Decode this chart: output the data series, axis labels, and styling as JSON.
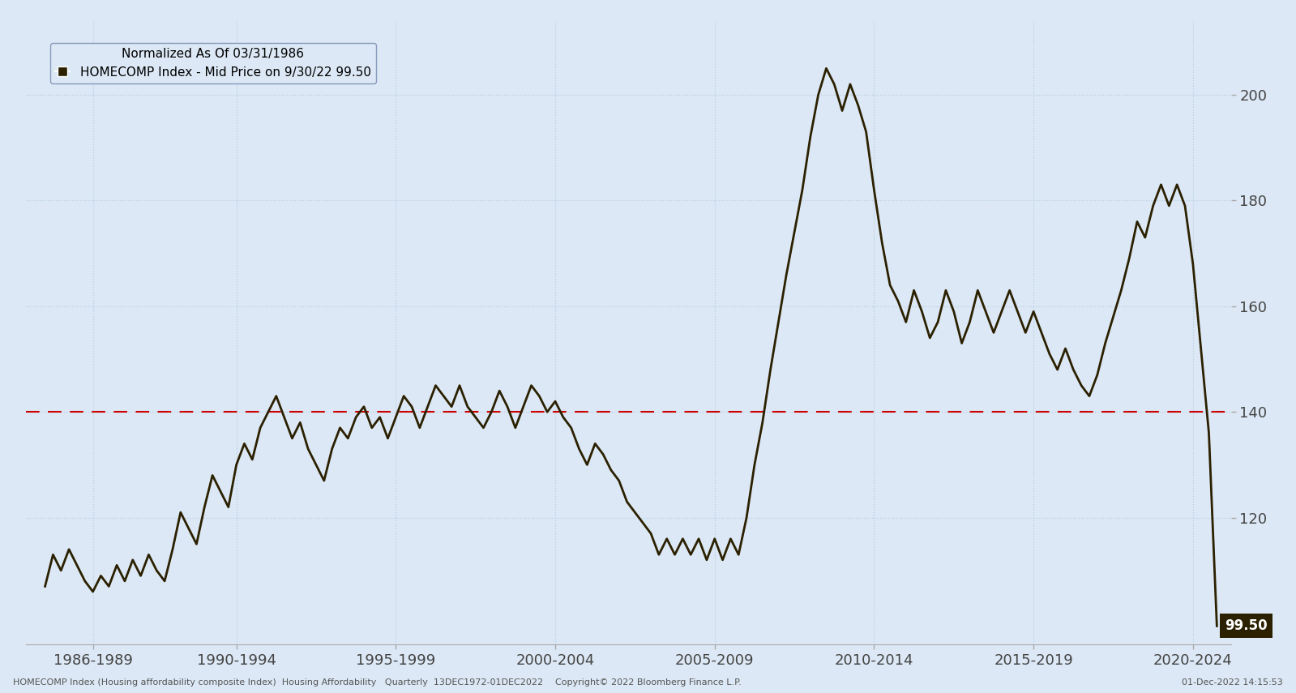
{
  "background_color": "#dce8f5",
  "line_color": "#2b2000",
  "line_width": 2.0,
  "dashed_line_value": 140,
  "dashed_line_color": "#cc0000",
  "last_value": 99.5,
  "last_value_bg": "#2b2000",
  "last_value_color": "#ffffff",
  "yticks": [
    120,
    140,
    160,
    180,
    200
  ],
  "grid_color": "#b8cfe0",
  "legend_title": "Normalized As Of 03/31/1986",
  "legend_label": "HOMECOMP Index - Mid Price on 9/30/22 99.50",
  "footer_left": "HOMECOMP Index (Housing affordability composite Index)  Housing Affordability   Quarterly  13DEC1972-01DEC2022",
  "footer_center": "Copyright© 2022 Bloomberg Finance L.P.",
  "footer_right": "01-Dec-2022 14:15:53",
  "xtick_labels": [
    "1986-1989",
    "1990-1994",
    "1995-1999",
    "2000-2004",
    "2005-2009",
    "2010-2014",
    "2015-2019",
    "2020-2024"
  ],
  "xtick_positions": [
    1987.5,
    1992.0,
    1997.0,
    2002.0,
    2007.0,
    2012.0,
    2017.0,
    2022.0
  ],
  "xlim": [
    1985.4,
    2023.2
  ],
  "ylim": [
    96,
    214
  ],
  "data": [
    [
      1986.0,
      107
    ],
    [
      1986.25,
      113
    ],
    [
      1986.5,
      110
    ],
    [
      1986.75,
      114
    ],
    [
      1987.0,
      111
    ],
    [
      1987.25,
      108
    ],
    [
      1987.5,
      106
    ],
    [
      1987.75,
      109
    ],
    [
      1988.0,
      107
    ],
    [
      1988.25,
      111
    ],
    [
      1988.5,
      108
    ],
    [
      1988.75,
      112
    ],
    [
      1989.0,
      109
    ],
    [
      1989.25,
      113
    ],
    [
      1989.5,
      110
    ],
    [
      1989.75,
      108
    ],
    [
      1990.0,
      114
    ],
    [
      1990.25,
      121
    ],
    [
      1990.5,
      118
    ],
    [
      1990.75,
      115
    ],
    [
      1991.0,
      122
    ],
    [
      1991.25,
      128
    ],
    [
      1991.5,
      125
    ],
    [
      1991.75,
      122
    ],
    [
      1992.0,
      130
    ],
    [
      1992.25,
      134
    ],
    [
      1992.5,
      131
    ],
    [
      1992.75,
      137
    ],
    [
      1993.0,
      140
    ],
    [
      1993.25,
      143
    ],
    [
      1993.5,
      139
    ],
    [
      1993.75,
      135
    ],
    [
      1994.0,
      138
    ],
    [
      1994.25,
      133
    ],
    [
      1994.5,
      130
    ],
    [
      1994.75,
      127
    ],
    [
      1995.0,
      133
    ],
    [
      1995.25,
      137
    ],
    [
      1995.5,
      135
    ],
    [
      1995.75,
      139
    ],
    [
      1996.0,
      141
    ],
    [
      1996.25,
      137
    ],
    [
      1996.5,
      139
    ],
    [
      1996.75,
      135
    ],
    [
      1997.0,
      139
    ],
    [
      1997.25,
      143
    ],
    [
      1997.5,
      141
    ],
    [
      1997.75,
      137
    ],
    [
      1998.0,
      141
    ],
    [
      1998.25,
      145
    ],
    [
      1998.5,
      143
    ],
    [
      1998.75,
      141
    ],
    [
      1999.0,
      145
    ],
    [
      1999.25,
      141
    ],
    [
      1999.5,
      139
    ],
    [
      1999.75,
      137
    ],
    [
      2000.0,
      140
    ],
    [
      2000.25,
      144
    ],
    [
      2000.5,
      141
    ],
    [
      2000.75,
      137
    ],
    [
      2001.0,
      141
    ],
    [
      2001.25,
      145
    ],
    [
      2001.5,
      143
    ],
    [
      2001.75,
      140
    ],
    [
      2002.0,
      142
    ],
    [
      2002.25,
      139
    ],
    [
      2002.5,
      137
    ],
    [
      2002.75,
      133
    ],
    [
      2003.0,
      130
    ],
    [
      2003.25,
      134
    ],
    [
      2003.5,
      132
    ],
    [
      2003.75,
      129
    ],
    [
      2004.0,
      127
    ],
    [
      2004.25,
      123
    ],
    [
      2004.5,
      121
    ],
    [
      2004.75,
      119
    ],
    [
      2005.0,
      117
    ],
    [
      2005.25,
      113
    ],
    [
      2005.5,
      116
    ],
    [
      2005.75,
      113
    ],
    [
      2006.0,
      116
    ],
    [
      2006.25,
      113
    ],
    [
      2006.5,
      116
    ],
    [
      2006.75,
      112
    ],
    [
      2007.0,
      116
    ],
    [
      2007.25,
      112
    ],
    [
      2007.5,
      116
    ],
    [
      2007.75,
      113
    ],
    [
      2008.0,
      120
    ],
    [
      2008.25,
      130
    ],
    [
      2008.5,
      138
    ],
    [
      2008.75,
      148
    ],
    [
      2009.0,
      157
    ],
    [
      2009.25,
      166
    ],
    [
      2009.5,
      174
    ],
    [
      2009.75,
      182
    ],
    [
      2010.0,
      192
    ],
    [
      2010.25,
      200
    ],
    [
      2010.5,
      205
    ],
    [
      2010.75,
      202
    ],
    [
      2011.0,
      197
    ],
    [
      2011.25,
      202
    ],
    [
      2011.5,
      198
    ],
    [
      2011.75,
      193
    ],
    [
      2012.0,
      182
    ],
    [
      2012.25,
      172
    ],
    [
      2012.5,
      164
    ],
    [
      2012.75,
      161
    ],
    [
      2013.0,
      157
    ],
    [
      2013.25,
      163
    ],
    [
      2013.5,
      159
    ],
    [
      2013.75,
      154
    ],
    [
      2014.0,
      157
    ],
    [
      2014.25,
      163
    ],
    [
      2014.5,
      159
    ],
    [
      2014.75,
      153
    ],
    [
      2015.0,
      157
    ],
    [
      2015.25,
      163
    ],
    [
      2015.5,
      159
    ],
    [
      2015.75,
      155
    ],
    [
      2016.0,
      159
    ],
    [
      2016.25,
      163
    ],
    [
      2016.5,
      159
    ],
    [
      2016.75,
      155
    ],
    [
      2017.0,
      159
    ],
    [
      2017.25,
      155
    ],
    [
      2017.5,
      151
    ],
    [
      2017.75,
      148
    ],
    [
      2018.0,
      152
    ],
    [
      2018.25,
      148
    ],
    [
      2018.5,
      145
    ],
    [
      2018.75,
      143
    ],
    [
      2019.0,
      147
    ],
    [
      2019.25,
      153
    ],
    [
      2019.5,
      158
    ],
    [
      2019.75,
      163
    ],
    [
      2020.0,
      169
    ],
    [
      2020.25,
      176
    ],
    [
      2020.5,
      173
    ],
    [
      2020.75,
      179
    ],
    [
      2021.0,
      183
    ],
    [
      2021.25,
      179
    ],
    [
      2021.5,
      183
    ],
    [
      2021.75,
      179
    ],
    [
      2022.0,
      168
    ],
    [
      2022.25,
      152
    ],
    [
      2022.5,
      136
    ],
    [
      2022.75,
      99.5
    ]
  ]
}
